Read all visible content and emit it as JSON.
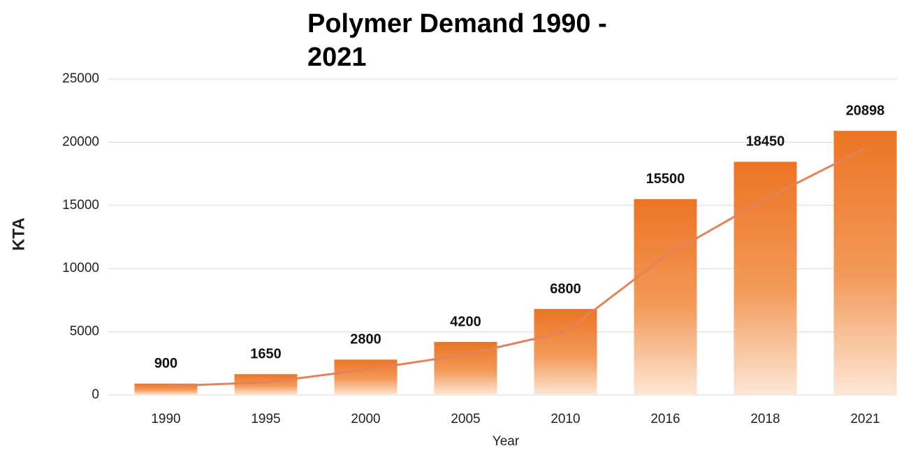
{
  "chart_data": {
    "type": "bar",
    "title": "Polymer Demand 1990 - 2021",
    "x_label": "Year",
    "y_label": "KTA",
    "categories": [
      "1990",
      "1995",
      "2000",
      "2005",
      "2010",
      "2016",
      "2018",
      "2021"
    ],
    "values": [
      900,
      1650,
      2800,
      4200,
      6800,
      15500,
      18450,
      20898
    ],
    "color": "#ec7424",
    "trendline": {
      "color": "#e2835a",
      "values": [
        700,
        1000,
        2000,
        3200,
        5000,
        11000,
        15500,
        19500
      ]
    },
    "ylim": [
      0,
      25000
    ],
    "yticks": [
      0,
      5000,
      10000,
      15000,
      20000,
      25000
    ],
    "grid": true
  }
}
